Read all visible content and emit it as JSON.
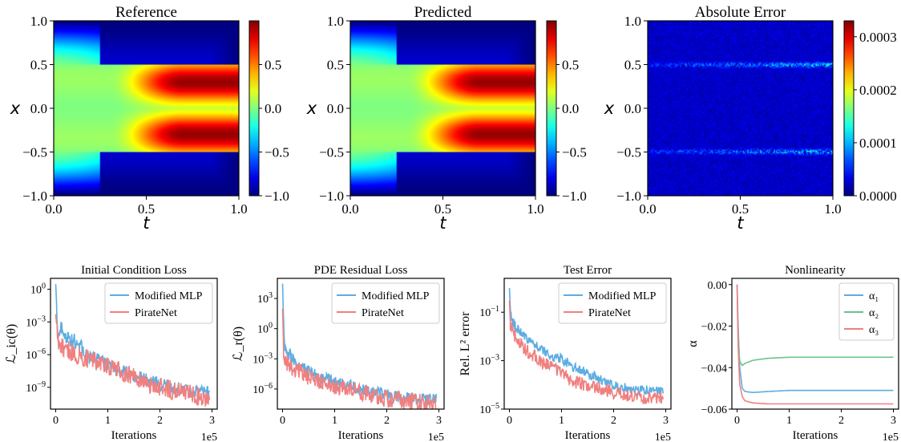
{
  "chart_data": [
    {
      "type": "heatmap",
      "title": "Reference",
      "xlabel": "t",
      "ylabel": "x",
      "xlim": [
        0.0,
        1.0
      ],
      "ylim": [
        -1.0,
        1.0
      ],
      "xticks": [
        "0.0",
        "0.5",
        "1.0"
      ],
      "yticks": [
        "−1.0",
        "−0.5",
        "0.0",
        "0.5",
        "1.0"
      ],
      "colormap": "jet",
      "colorbar": {
        "range": [
          -1.0,
          1.0
        ],
        "ticks": [
          "−1.0",
          "−0.5",
          "0.0",
          "0.5"
        ]
      },
      "field": "allen-cahn"
    },
    {
      "type": "heatmap",
      "title": "Predicted",
      "xlabel": "t",
      "ylabel": "x",
      "xlim": [
        0.0,
        1.0
      ],
      "ylim": [
        -1.0,
        1.0
      ],
      "xticks": [
        "0.0",
        "0.5",
        "1.0"
      ],
      "yticks": [
        "−1.0",
        "−0.5",
        "0.0",
        "0.5",
        "1.0"
      ],
      "colormap": "jet",
      "colorbar": {
        "range": [
          -1.0,
          1.0
        ],
        "ticks": [
          "−1.0",
          "−0.5",
          "0.0",
          "0.5"
        ]
      },
      "field": "allen-cahn"
    },
    {
      "type": "heatmap",
      "title": "Absolute Error",
      "xlabel": "t",
      "ylabel": "x",
      "xlim": [
        0.0,
        1.0
      ],
      "ylim": [
        -1.0,
        1.0
      ],
      "xticks": [
        "0.0",
        "0.5",
        "1.0"
      ],
      "yticks": [
        "−1.0",
        "−0.5",
        "0.0",
        "0.5",
        "1.0"
      ],
      "colormap": "jet",
      "colorbar": {
        "range": [
          0.0,
          0.00033
        ],
        "ticks": [
          "0.0000",
          "0.0001",
          "0.0002",
          "0.0003"
        ]
      },
      "field": "error"
    },
    {
      "type": "line",
      "title": "Initial Condition Loss",
      "xlabel": "Iterations",
      "ylabel": "ℒ_ic(θ)",
      "yscale": "log",
      "ylim": [
        1e-11,
        10.0
      ],
      "xlim": [
        -0.1,
        3.1
      ],
      "xticks": [
        "0",
        "1",
        "2",
        "3"
      ],
      "x_offset_label": "1e5",
      "yticks": [
        "10^0",
        "10^−3",
        "10^−6",
        "10^−9"
      ],
      "legend": "top-right",
      "series": [
        {
          "name": "Modified MLP",
          "color": "#5dade2",
          "x": [
            0,
            0.05,
            0.1,
            0.2,
            0.4,
            0.6,
            0.8,
            1.0,
            1.5,
            2.0,
            2.5,
            2.95
          ],
          "y": [
            3,
            1e-05,
            0.0003,
            3e-05,
            2e-05,
            1e-06,
            3e-07,
            1e-07,
            1e-08,
            2e-09,
            5e-10,
            4e-10
          ]
        },
        {
          "name": "PirateNet",
          "color": "#f08080",
          "x": [
            0,
            0.05,
            0.1,
            0.2,
            0.4,
            0.6,
            0.8,
            1.0,
            1.5,
            2.0,
            2.5,
            2.95
          ],
          "y": [
            0.005,
            1e-05,
            1e-05,
            3e-06,
            1e-06,
            5e-07,
            2e-07,
            1e-07,
            8e-09,
            1e-09,
            3e-10,
            1e-10
          ]
        }
      ]
    },
    {
      "type": "line",
      "title": "PDE Residual Loss",
      "xlabel": "Iterations",
      "ylabel": "ℒ_r(θ)",
      "yscale": "log",
      "ylim": [
        1e-08,
        100000.0
      ],
      "xlim": [
        -0.1,
        3.1
      ],
      "xticks": [
        "0",
        "1",
        "2",
        "3"
      ],
      "x_offset_label": "1e5",
      "yticks": [
        "10^3",
        "10^0",
        "10^−3",
        "10^−6"
      ],
      "legend": "top-right",
      "series": [
        {
          "name": "Modified MLP",
          "color": "#5dade2",
          "x": [
            0,
            0.02,
            0.05,
            0.1,
            0.2,
            0.4,
            0.6,
            0.8,
            1.0,
            1.5,
            2.0,
            2.5,
            2.95
          ],
          "y": [
            30000.0,
            3.0,
            0.01,
            0.005,
            0.001,
            0.0001,
            3e-05,
            1e-05,
            5e-06,
            1e-06,
            3e-07,
            1e-07,
            8e-08
          ]
        },
        {
          "name": "PirateNet",
          "color": "#f08080",
          "x": [
            0,
            0.02,
            0.05,
            0.1,
            0.2,
            0.4,
            0.6,
            0.8,
            1.0,
            1.5,
            2.0,
            2.5,
            2.95
          ],
          "y": [
            100.0,
            0.01,
            0.001,
            0.0003,
            0.0001,
            3e-05,
            1e-05,
            5e-06,
            2e-06,
            5e-07,
            1e-07,
            5e-08,
            3e-08
          ]
        }
      ]
    },
    {
      "type": "line",
      "title": "Test Error",
      "xlabel": "Iterations",
      "ylabel": "Rel. L² error",
      "yscale": "log",
      "ylim": [
        1e-05,
        2.5
      ],
      "xlim": [
        -0.1,
        3.1
      ],
      "xticks": [
        "0",
        "1",
        "2",
        "3"
      ],
      "x_offset_label": "1e5",
      "yticks": [
        "10^−1",
        "10^−3",
        "10^−5"
      ],
      "legend": "top-right",
      "series": [
        {
          "name": "Modified MLP",
          "color": "#5dade2",
          "x": [
            0,
            0.02,
            0.05,
            0.1,
            0.2,
            0.4,
            0.6,
            0.8,
            1.0,
            1.2,
            1.5,
            2.0,
            2.5,
            2.95
          ],
          "y": [
            1.0,
            0.1,
            0.05,
            0.03,
            0.015,
            0.006,
            0.003,
            0.0015,
            0.0012,
            0.0006,
            0.0003,
            0.0001,
            6e-05,
            6e-05
          ]
        },
        {
          "name": "PirateNet",
          "color": "#f08080",
          "x": [
            0,
            0.02,
            0.05,
            0.1,
            0.2,
            0.4,
            0.6,
            0.8,
            1.0,
            1.2,
            1.5,
            2.0,
            2.5,
            2.95
          ],
          "y": [
            0.3,
            0.03,
            0.02,
            0.01,
            0.005,
            0.002,
            0.001,
            0.0005,
            0.0003,
            0.00015,
            9e-05,
            5e-05,
            3e-05,
            3e-05
          ]
        }
      ]
    },
    {
      "type": "line",
      "title": "Nonlinearity",
      "xlabel": "Iterations",
      "ylabel": "α",
      "yscale": "linear",
      "ylim": [
        -0.06,
        0.003
      ],
      "xlim": [
        -0.1,
        3.1
      ],
      "xticks": [
        "0",
        "1",
        "2",
        "3"
      ],
      "x_offset_label": "1e5",
      "yticks": [
        "0.00",
        "−0.02",
        "−0.04",
        "−0.06"
      ],
      "legend": "top-right",
      "series": [
        {
          "name": "α₁",
          "color": "#5dade2",
          "x": [
            0,
            0.02,
            0.05,
            0.1,
            0.15,
            0.3,
            0.6,
            1.0,
            2.0,
            3.0
          ],
          "y": [
            0.0,
            -0.02,
            -0.04,
            -0.05,
            -0.0515,
            -0.052,
            -0.0515,
            -0.051,
            -0.051,
            -0.051
          ]
        },
        {
          "name": "α₂",
          "color": "#6cc38c",
          "x": [
            0,
            0.02,
            0.05,
            0.1,
            0.15,
            0.3,
            0.6,
            1.0,
            2.0,
            3.0
          ],
          "y": [
            0.0,
            -0.025,
            -0.037,
            -0.039,
            -0.038,
            -0.0365,
            -0.0355,
            -0.035,
            -0.035,
            -0.035
          ]
        },
        {
          "name": "α₃",
          "color": "#f08080",
          "x": [
            0,
            0.02,
            0.05,
            0.1,
            0.15,
            0.3,
            0.6,
            1.0,
            2.0,
            3.0
          ],
          "y": [
            0.0,
            -0.03,
            -0.048,
            -0.054,
            -0.056,
            -0.057,
            -0.0575,
            -0.0575,
            -0.0575,
            -0.0575
          ]
        }
      ]
    }
  ]
}
